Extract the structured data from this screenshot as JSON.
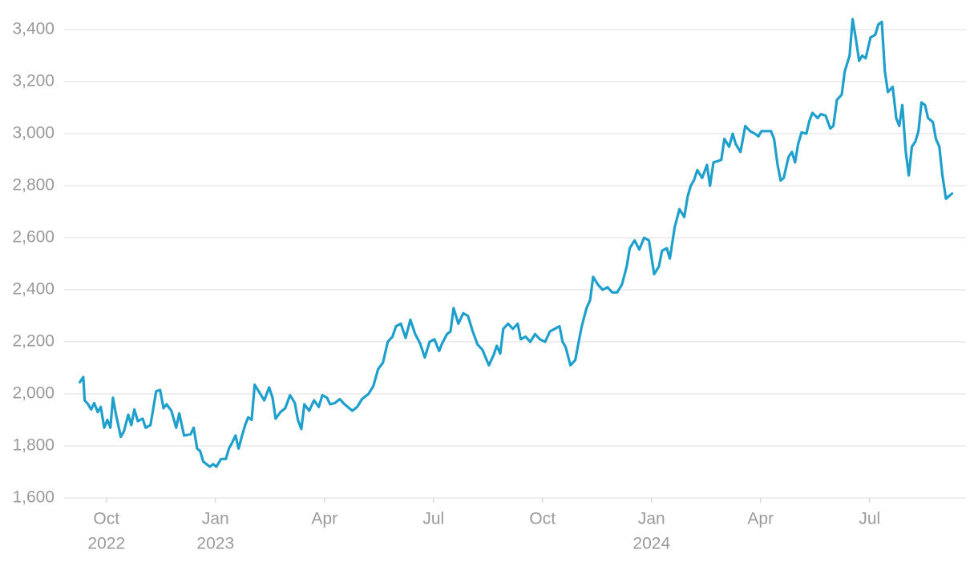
{
  "chart_data": {
    "type": "line",
    "xlim": [
      2022.653,
      2024.721
    ],
    "ylim": [
      1600,
      3400
    ],
    "yticks": [
      {
        "value": 1600,
        "label": "1,600"
      },
      {
        "value": 1800,
        "label": "1,800"
      },
      {
        "value": 2000,
        "label": "2,000"
      },
      {
        "value": 2200,
        "label": "2,200"
      },
      {
        "value": 2400,
        "label": "2,400"
      },
      {
        "value": 2600,
        "label": "2,600"
      },
      {
        "value": 2800,
        "label": "2,800"
      },
      {
        "value": 3000,
        "label": "3,000"
      },
      {
        "value": 3200,
        "label": "3,200"
      },
      {
        "value": 3400,
        "label": "3,400"
      }
    ],
    "xticks": [
      {
        "value": 2022.75,
        "label": [
          "Oct",
          "2022"
        ]
      },
      {
        "value": 2023,
        "label": [
          "Jan",
          "2023"
        ]
      },
      {
        "value": 2023.25,
        "label": "Apr"
      },
      {
        "value": 2023.5,
        "label": "Jul"
      },
      {
        "value": 2023.75,
        "label": "Oct"
      },
      {
        "value": 2024,
        "label": [
          "Jan",
          "2024"
        ]
      },
      {
        "value": 2024.25,
        "label": "Apr"
      },
      {
        "value": 2024.5,
        "label": "Jul"
      }
    ],
    "grid": true,
    "x": [
      2022.689,
      2022.697,
      2022.7,
      2022.708,
      2022.715,
      2022.722,
      2022.73,
      2022.737,
      2022.745,
      2022.752,
      2022.759,
      2022.765,
      2022.772,
      2022.783,
      2022.79,
      2022.8,
      2022.807,
      2022.814,
      2022.822,
      2022.833,
      2022.84,
      2022.851,
      2022.864,
      2022.873,
      2022.881,
      2022.888,
      2022.899,
      2022.91,
      2022.917,
      2022.928,
      2022.943,
      2022.95,
      2022.958,
      2022.965,
      2022.972,
      2022.987,
      2022.995,
      2023.002,
      2023.013,
      2023.024,
      2023.031,
      2023.039,
      2023.046,
      2023.053,
      2023.061,
      2023.068,
      2023.075,
      2023.083,
      2023.09,
      2023.101,
      2023.112,
      2023.123,
      2023.131,
      2023.138,
      2023.149,
      2023.16,
      2023.171,
      2023.182,
      2023.189,
      2023.197,
      2023.204,
      2023.215,
      2023.226,
      2023.237,
      2023.245,
      2023.256,
      2023.263,
      2023.274,
      2023.285,
      2023.296,
      2023.314,
      2023.325,
      2023.336,
      2023.351,
      2023.362,
      2023.373,
      2023.384,
      2023.395,
      2023.406,
      2023.414,
      2023.425,
      2023.436,
      2023.447,
      2023.458,
      2023.469,
      2023.48,
      2023.491,
      2023.502,
      2023.513,
      2023.52,
      2023.531,
      2023.539,
      2023.546,
      2023.557,
      2023.568,
      2023.579,
      2023.59,
      2023.601,
      2023.612,
      2023.627,
      2023.638,
      2023.645,
      2023.653,
      2023.66,
      2023.671,
      2023.682,
      2023.693,
      2023.7,
      2023.711,
      2023.722,
      2023.733,
      2023.744,
      2023.756,
      2023.767,
      2023.778,
      2023.789,
      2023.796,
      2023.803,
      2023.814,
      2023.825,
      2023.833,
      2023.84,
      2023.851,
      2023.859,
      2023.866,
      2023.877,
      2023.888,
      2023.899,
      2023.91,
      2023.921,
      2023.932,
      2023.943,
      2023.95,
      2023.961,
      2023.972,
      2023.983,
      2023.994,
      2024.006,
      2024.017,
      2024.024,
      2024.035,
      2024.042,
      2024.053,
      2024.064,
      2024.075,
      2024.083,
      2024.09,
      2024.097,
      2024.105,
      2024.116,
      2024.127,
      2024.134,
      2024.142,
      2024.153,
      2024.16,
      2024.167,
      2024.178,
      2024.186,
      2024.193,
      2024.204,
      2024.215,
      2024.226,
      2024.237,
      2024.245,
      2024.252,
      2024.263,
      2024.274,
      2024.281,
      2024.289,
      2024.296,
      2024.303,
      2024.314,
      2024.322,
      2024.329,
      2024.336,
      2024.344,
      2024.355,
      2024.362,
      2024.369,
      2024.381,
      2024.388,
      2024.399,
      2024.41,
      2024.417,
      2024.425,
      2024.436,
      2024.443,
      2024.454,
      2024.461,
      2024.469,
      2024.476,
      2024.483,
      2024.491,
      2024.502,
      2024.513,
      2024.52,
      2024.528,
      2024.535,
      2024.542,
      2024.553,
      2024.561,
      2024.568,
      2024.575,
      2024.583,
      2024.59,
      2024.597,
      2024.605,
      2024.612,
      2024.619,
      2024.627,
      2024.634,
      2024.645,
      2024.652,
      2024.66,
      2024.667,
      2024.675,
      2024.682,
      2024.689
    ],
    "series": [
      {
        "color": "#1e9fcc",
        "values": [
          2045,
          2065,
          1975,
          1960,
          1940,
          1965,
          1930,
          1950,
          1870,
          1900,
          1870,
          1985,
          1920,
          1835,
          1855,
          1920,
          1880,
          1940,
          1895,
          1905,
          1870,
          1880,
          2010,
          2015,
          1945,
          1960,
          1935,
          1870,
          1925,
          1840,
          1845,
          1870,
          1790,
          1780,
          1740,
          1720,
          1730,
          1720,
          1750,
          1750,
          1790,
          1815,
          1840,
          1790,
          1840,
          1880,
          1910,
          1900,
          2035,
          2005,
          1975,
          2025,
          1985,
          1905,
          1930,
          1945,
          1995,
          1965,
          1900,
          1865,
          1960,
          1935,
          1975,
          1950,
          1995,
          1985,
          1960,
          1965,
          1980,
          1960,
          1935,
          1950,
          1980,
          2000,
          2030,
          2095,
          2120,
          2200,
          2220,
          2260,
          2270,
          2215,
          2285,
          2230,
          2195,
          2140,
          2200,
          2210,
          2165,
          2195,
          2230,
          2240,
          2330,
          2270,
          2310,
          2300,
          2240,
          2190,
          2170,
          2110,
          2150,
          2185,
          2155,
          2250,
          2270,
          2250,
          2270,
          2210,
          2220,
          2200,
          2230,
          2210,
          2200,
          2240,
          2250,
          2260,
          2200,
          2180,
          2110,
          2130,
          2200,
          2260,
          2330,
          2360,
          2450,
          2420,
          2400,
          2410,
          2390,
          2390,
          2420,
          2490,
          2560,
          2590,
          2555,
          2600,
          2590,
          2460,
          2490,
          2550,
          2560,
          2520,
          2640,
          2710,
          2680,
          2760,
          2800,
          2820,
          2860,
          2830,
          2880,
          2800,
          2890,
          2895,
          2900,
          2980,
          2950,
          3000,
          2960,
          2930,
          3030,
          3010,
          3000,
          2990,
          3010,
          3010,
          3010,
          2980,
          2880,
          2820,
          2830,
          2910,
          2930,
          2890,
          2960,
          3005,
          3000,
          3050,
          3080,
          3060,
          3075,
          3070,
          3020,
          3030,
          3130,
          3150,
          3240,
          3300,
          3440,
          3360,
          3280,
          3300,
          3290,
          3370,
          3380,
          3420,
          3430,
          3240,
          3160,
          3180,
          3060,
          3030,
          3110,
          2930,
          2840,
          2950,
          2970,
          3010,
          3120,
          3110,
          3060,
          3045,
          2980,
          2950,
          2840,
          2750,
          2760,
          2770
        ]
      }
    ]
  }
}
